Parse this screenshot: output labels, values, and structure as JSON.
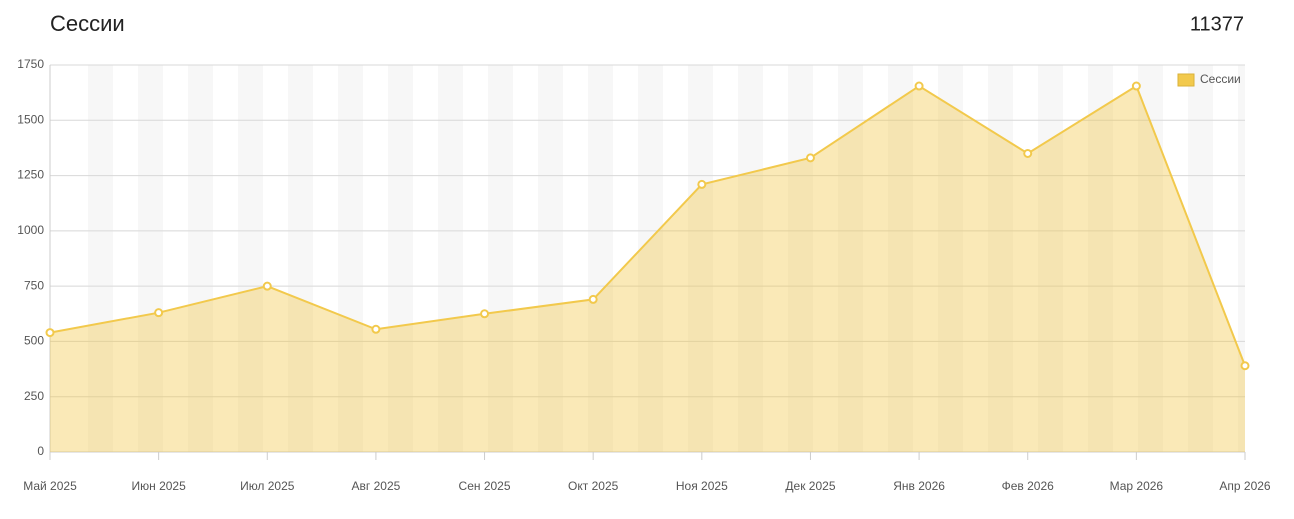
{
  "chart_data": {
    "type": "area",
    "title": "Сессии",
    "total": 11377,
    "categories": [
      "Май 2025",
      "Июн 2025",
      "Июл 2025",
      "Авг 2025",
      "Сен 2025",
      "Окт 2025",
      "Ноя 2025",
      "Дек 2025",
      "Янв 2026",
      "Фев 2026",
      "Мар 2026",
      "Апр 2026"
    ],
    "series": [
      {
        "name": "Сессии",
        "color": "#f2c94c",
        "values": [
          540,
          630,
          750,
          555,
          625,
          690,
          1210,
          1330,
          1655,
          1350,
          1655,
          390
        ]
      }
    ],
    "ylim": [
      0,
      1750
    ],
    "yticks": [
      0,
      250,
      500,
      750,
      1000,
      1250,
      1500,
      1750
    ],
    "grid": true,
    "legend": "top-right"
  }
}
